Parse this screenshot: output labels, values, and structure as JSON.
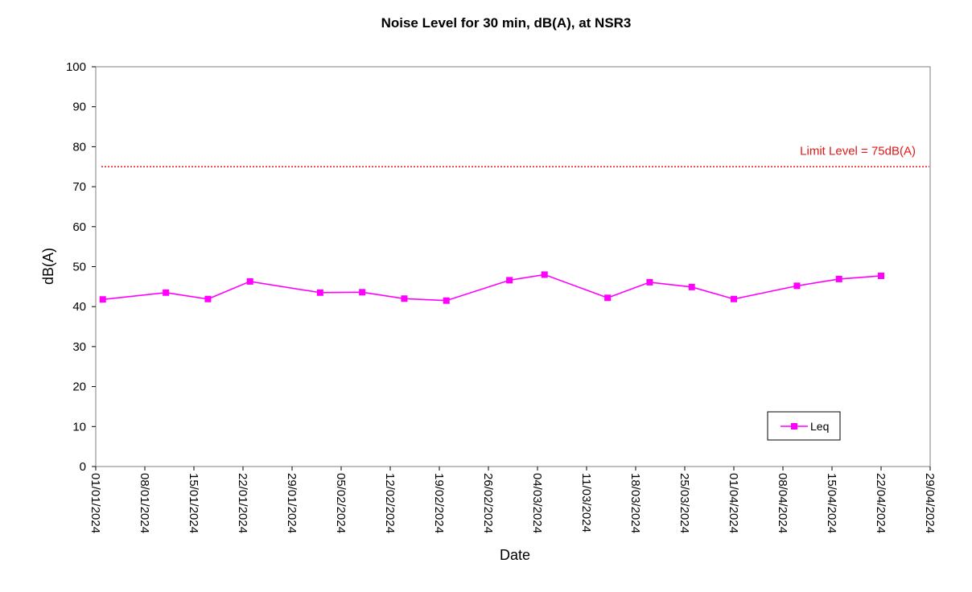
{
  "chart_data": {
    "type": "line",
    "title": "Noise Level for 30 min, dB(A), at NSR3",
    "xlabel": "Date",
    "ylabel": "dB(A)",
    "ylim": [
      0,
      100
    ],
    "yticks": [
      0,
      10,
      20,
      30,
      40,
      50,
      60,
      70,
      80,
      90,
      100
    ],
    "xlim": [
      "2024-01-01",
      "2024-04-29"
    ],
    "xtick_labels": [
      "01/01/2024",
      "08/01/2024",
      "15/01/2024",
      "22/01/2024",
      "29/01/2024",
      "05/02/2024",
      "12/02/2024",
      "19/02/2024",
      "26/02/2024",
      "04/03/2024",
      "11/03/2024",
      "18/03/2024",
      "25/03/2024",
      "01/04/2024",
      "08/04/2024",
      "15/04/2024",
      "22/04/2024",
      "29/04/2024"
    ],
    "grid": false,
    "legend_position": "bottom-right",
    "series": [
      {
        "name": "Leq",
        "color": "#ff00ff",
        "marker": "square",
        "x": [
          "2024-01-02",
          "2024-01-11",
          "2024-01-17",
          "2024-01-23",
          "2024-02-02",
          "2024-02-08",
          "2024-02-14",
          "2024-02-20",
          "2024-02-29",
          "2024-03-05",
          "2024-03-14",
          "2024-03-20",
          "2024-03-26",
          "2024-04-01",
          "2024-04-10",
          "2024-04-16",
          "2024-04-22"
        ],
        "y": [
          41.8,
          43.5,
          41.9,
          46.3,
          43.5,
          43.6,
          42.0,
          41.5,
          46.6,
          48.0,
          42.2,
          46.1,
          44.9,
          41.9,
          45.2,
          46.9,
          47.7
        ]
      }
    ],
    "limit_line": {
      "value": 75,
      "label": "Limit Level = 75dB(A)",
      "color": "#e01818",
      "style": "dotted"
    }
  }
}
